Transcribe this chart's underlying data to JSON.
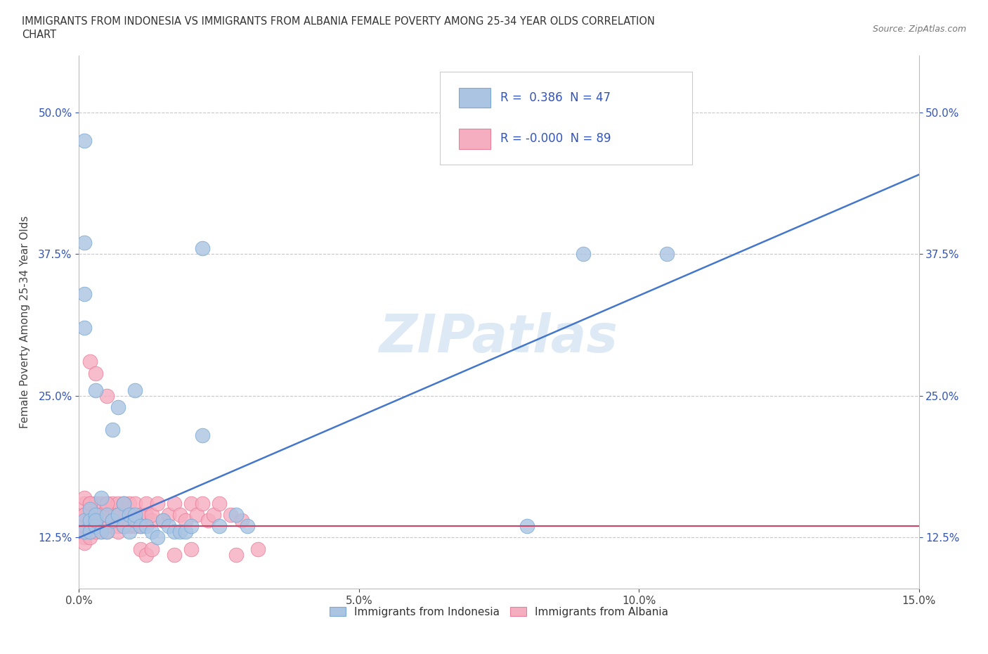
{
  "title_line1": "IMMIGRANTS FROM INDONESIA VS IMMIGRANTS FROM ALBANIA FEMALE POVERTY AMONG 25-34 YEAR OLDS CORRELATION",
  "title_line2": "CHART",
  "source": "Source: ZipAtlas.com",
  "ylabel": "Female Poverty Among 25-34 Year Olds",
  "xlim": [
    0.0,
    0.15
  ],
  "ylim": [
    0.08,
    0.55
  ],
  "xticks": [
    0.0,
    0.05,
    0.1,
    0.15
  ],
  "xtick_labels": [
    "0.0%",
    "5.0%",
    "10.0%",
    "15.0%"
  ],
  "yticks": [
    0.125,
    0.25,
    0.375,
    0.5
  ],
  "ytick_labels": [
    "12.5%",
    "25.0%",
    "37.5%",
    "50.0%"
  ],
  "indonesia_color": "#aac4e2",
  "albania_color": "#f5adc0",
  "indonesia_edge": "#7aaad4",
  "albania_edge": "#e8809a",
  "trend_indonesia_color": "#4477cc",
  "trend_albania_color": "#cc4466",
  "trend_indo_x0": 0.0,
  "trend_indo_y0": 0.125,
  "trend_indo_x1": 0.15,
  "trend_indo_y1": 0.445,
  "trend_alb_y": 0.135,
  "R_indonesia": 0.386,
  "N_indonesia": 47,
  "R_albania": -0.0,
  "N_albania": 89,
  "watermark": "ZIPatlas",
  "background_color": "#ffffff",
  "grid_color": "#c8c8c8",
  "legend_text_color": "#3355bb",
  "legend_R_color_pos": "#3355bb",
  "legend_R_color_neg": "#3355bb"
}
